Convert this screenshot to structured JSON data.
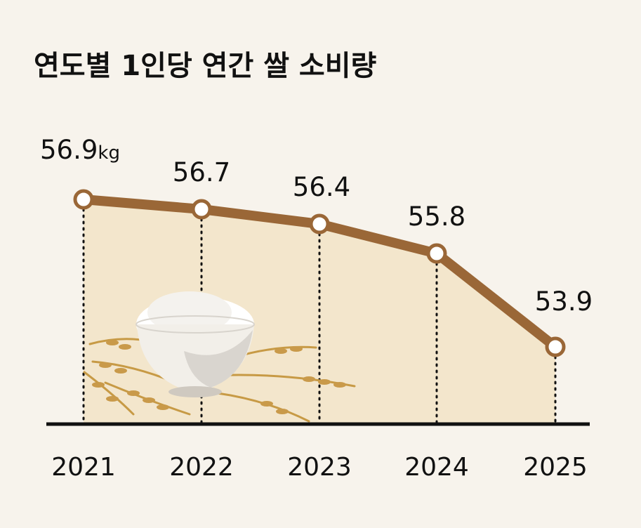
{
  "chart_data": {
    "type": "line",
    "title": "연도별 1인당 연간 쌀 소비량",
    "xlabel": "",
    "ylabel": "",
    "unit": "kg",
    "categories": [
      "2021",
      "2022",
      "2023",
      "2024",
      "2025"
    ],
    "series": [
      {
        "values": [
          56.9,
          56.7,
          56.4,
          55.8,
          53.9
        ]
      }
    ],
    "value_labels": [
      "56.9",
      "56.7",
      "56.4",
      "55.8",
      "53.9"
    ],
    "grid": false,
    "legend": "none",
    "colors": {
      "line": "#9a6737",
      "fill": "#f3e6cc",
      "background": "#f7f3ec",
      "axis": "#111111"
    }
  },
  "illustration": {
    "icon": "rice-bowl-with-grain-stalks-icon"
  }
}
